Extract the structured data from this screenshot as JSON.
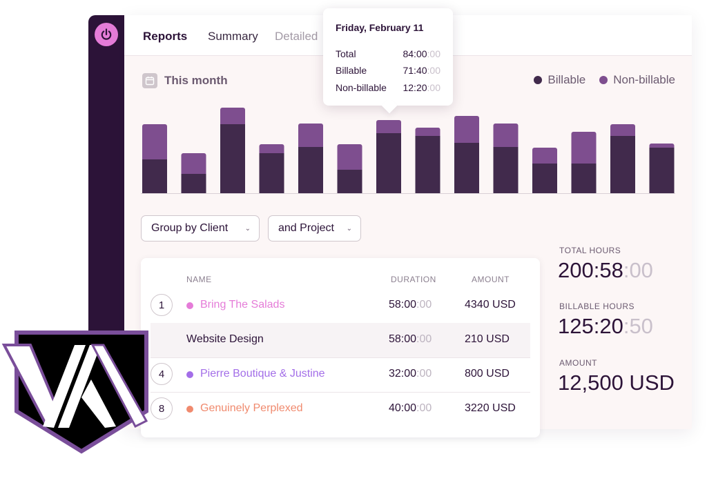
{
  "nav": {
    "tabs": [
      {
        "label": "Reports"
      },
      {
        "label": "Summary"
      },
      {
        "label": "Detailed"
      }
    ]
  },
  "period": {
    "label": "This month"
  },
  "legend": [
    {
      "label": "Billable",
      "color": "#412a4c"
    },
    {
      "label": "Non-billable",
      "color": "#7e4e8f"
    }
  ],
  "tooltip": {
    "title": "Friday, February 11",
    "rows": [
      {
        "label": "Total",
        "value": "84:00",
        "faded": ":00"
      },
      {
        "label": "Billable",
        "value": "71:40",
        "faded": ":00"
      },
      {
        "label": "Non-billable",
        "value": "12:20",
        "faded": ":00"
      }
    ]
  },
  "chart_data": {
    "type": "bar",
    "stacked": true,
    "series": [
      {
        "name": "Billable",
        "values": [
          49,
          28,
          100,
          58,
          67,
          34,
          87,
          83,
          73,
          67,
          43,
          43,
          83,
          66
        ]
      },
      {
        "name": "Non-billable",
        "values": [
          51,
          30,
          24,
          13,
          34,
          37,
          19,
          12,
          39,
          34,
          23,
          46,
          17,
          6
        ]
      }
    ]
  },
  "filters": {
    "group_by": "Group by Client",
    "and_by": "and Project"
  },
  "table": {
    "headers": {
      "name": "NAME",
      "duration": "DURATION",
      "amount": "AMOUNT"
    },
    "rows": [
      {
        "num": "1",
        "name": "Bring The Salads",
        "color": "#e57cd8",
        "duration": "58:00",
        "duration_faded": ":00",
        "amount": "4340 USD"
      },
      {
        "num": "",
        "name": "Website Design",
        "color": "",
        "duration": "58:00",
        "duration_faded": ":00",
        "amount": "210 USD"
      },
      {
        "num": "4",
        "name": "Pierre Boutique & Justine",
        "color": "#a36ee8",
        "duration": "32:00",
        "duration_faded": ":00",
        "amount": "800 USD"
      },
      {
        "num": "8",
        "name": "Genuinely Perplexed",
        "color": "#f08a6e",
        "duration": "40:00",
        "duration_faded": ":00",
        "amount": "3220 USD"
      }
    ]
  },
  "stats": {
    "total_label": "TOTAL HOURS",
    "total_value": "200:58",
    "total_faded": ":00",
    "billable_label": "BILLABLE HOURS",
    "billable_value": "125:20",
    "billable_faded": ":50",
    "amount_label": "AMOUNT",
    "amount_value": "12,500 USD"
  }
}
